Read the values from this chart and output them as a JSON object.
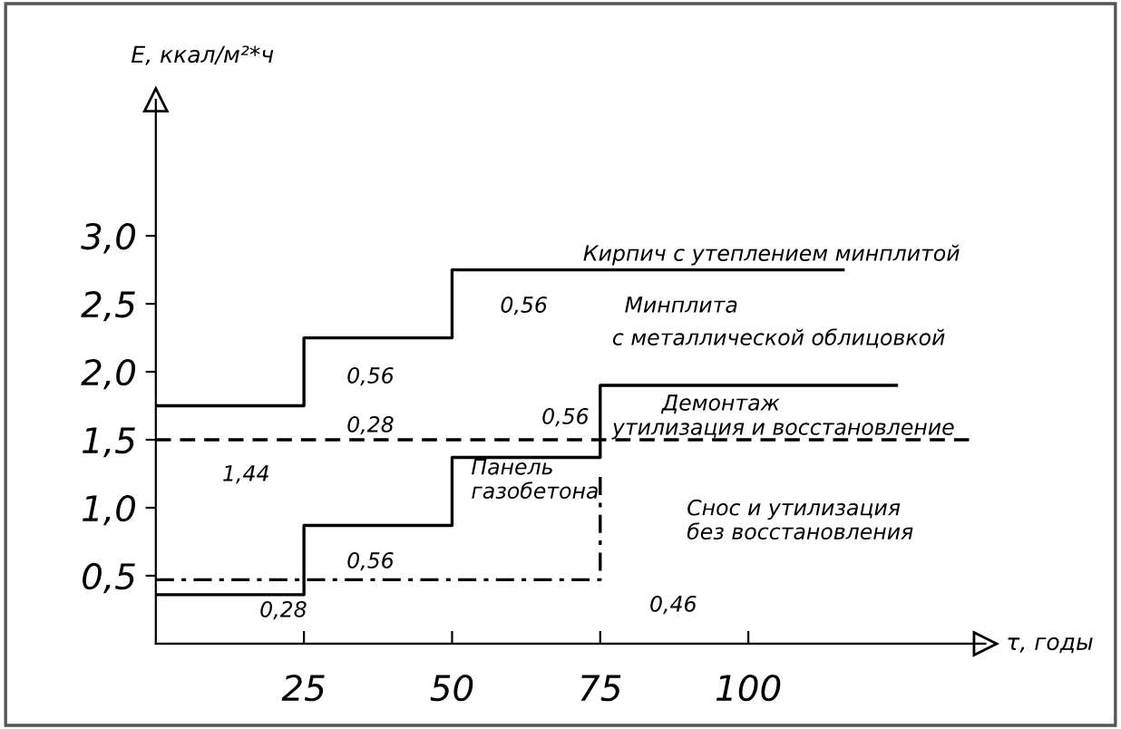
{
  "chart_data": {
    "type": "step",
    "xlabel": "τ, годы",
    "ylabel": "E, ккал/м²*ч",
    "xlim": [
      0,
      140
    ],
    "ylim": [
      0,
      4.0
    ],
    "xticks": [
      25,
      50,
      75,
      100
    ],
    "yticks": [
      {
        "value": 0.5,
        "label": "0,5"
      },
      {
        "value": 1.0,
        "label": "1,0"
      },
      {
        "value": 1.5,
        "label": "1,5"
      },
      {
        "value": 2.0,
        "label": "2,0"
      },
      {
        "value": 2.5,
        "label": "2,5"
      },
      {
        "value": 3.0,
        "label": "3,0"
      }
    ],
    "grid": false,
    "series": [
      {
        "color": "#000000",
        "line_style": "solid",
        "x": [
          0,
          25,
          50,
          116
        ],
        "values": [
          1.75,
          2.25,
          2.75,
          2.75
        ]
      },
      {
        "color": "#000000",
        "line_style": "solid",
        "x": [
          0,
          25,
          50,
          75,
          125
        ],
        "values": [
          0.36,
          0.87,
          1.37,
          1.9,
          1.9
        ]
      },
      {
        "type": "line",
        "color": "#000000",
        "line_style": "dashed",
        "x": [
          0,
          138
        ],
        "values": [
          1.5,
          1.5
        ]
      },
      {
        "type": "line",
        "color": "#000000",
        "line_style": "dashdot",
        "x": [
          0,
          75,
          75
        ],
        "values": [
          0.47,
          0.47,
          1.25
        ]
      }
    ],
    "annotations": [
      "Кирпич с утеплением минплитой",
      "Минплита",
      "с металлической облицовкой",
      "Демонтаж",
      "утилизация и восстановление",
      "Панель\nгазобетона",
      "Снос и утилизация\nбез восстановления",
      "0,56",
      "0,56",
      "0,28",
      "1,44",
      "0,56",
      "0,56",
      "0,28",
      "0,46"
    ]
  }
}
